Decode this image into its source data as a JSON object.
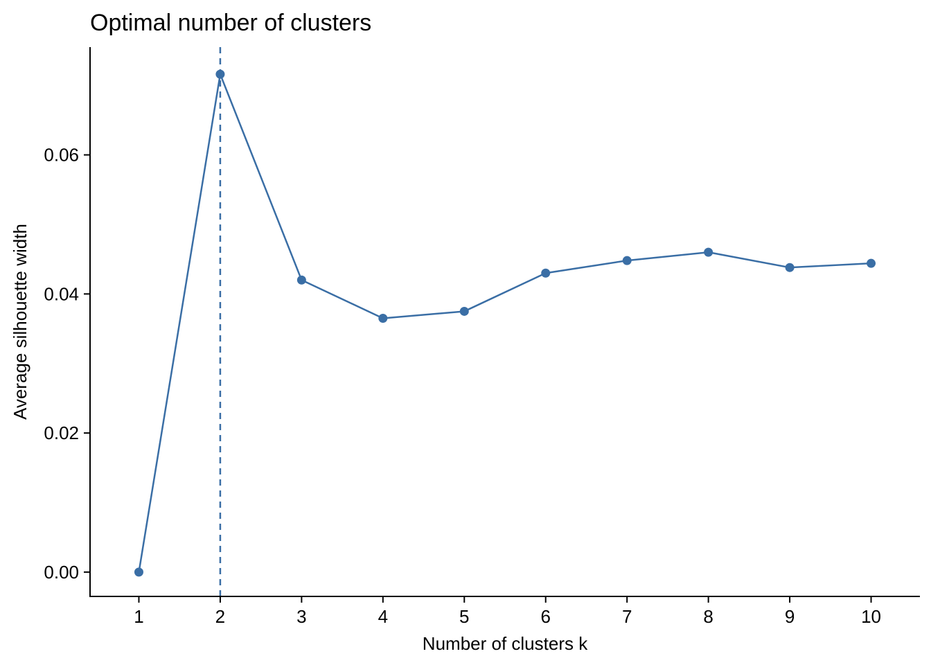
{
  "chart_data": {
    "type": "line",
    "title": "Optimal number of clusters",
    "xlabel": "Number of clusters k",
    "ylabel": "Average silhouette width",
    "x": [
      1,
      2,
      3,
      4,
      5,
      6,
      7,
      8,
      9,
      10
    ],
    "x_tick_labels": [
      "1",
      "2",
      "3",
      "4",
      "5",
      "6",
      "7",
      "8",
      "9",
      "10"
    ],
    "series": [
      {
        "values": [
          0.0,
          0.0716,
          0.042,
          0.0365,
          0.0375,
          0.043,
          0.0448,
          0.046,
          0.0438,
          0.0444
        ]
      }
    ],
    "y_ticks": [
      0.0,
      0.02,
      0.04,
      0.06
    ],
    "y_tick_labels": [
      "0.00",
      "0.02",
      "0.04",
      "0.06"
    ],
    "xlim": [
      0.4,
      10.6
    ],
    "ylim": [
      -0.0035,
      0.0755
    ],
    "reference_line": {
      "orientation": "vertical",
      "x": 2,
      "style": "dashed"
    },
    "grid": false,
    "legend": "none",
    "color": "#3A6EA5"
  }
}
